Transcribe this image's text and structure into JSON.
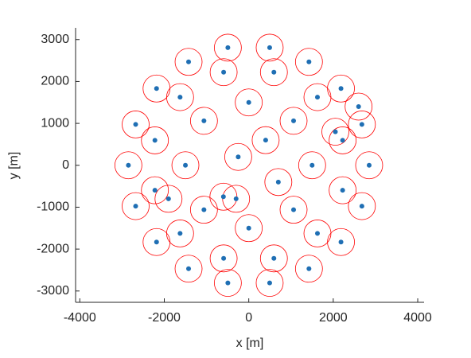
{
  "chart_data": {
    "type": "scatter",
    "xlabel": "x [m]",
    "ylabel": "y [m]",
    "xlim": [
      -4100,
      4150
    ],
    "ylim": [
      -3270,
      3280
    ],
    "xticks": [
      -4000,
      -2000,
      0,
      2000,
      4000
    ],
    "yticks": [
      -3000,
      -2000,
      -1000,
      0,
      1000,
      2000,
      3000
    ],
    "grid": false,
    "circle_radius": 320,
    "circle_color": "#ff0000",
    "series": [
      {
        "color": "#1f6fb4",
        "x": [
          2850,
          2678,
          2183,
          1425,
          495,
          -495,
          -1425,
          -2183,
          -2678,
          -2850,
          -2678,
          -2183,
          -1425,
          -495,
          495,
          1425,
          2183,
          2678,
          2222,
          1626,
          595,
          -595,
          -1626,
          -2222,
          -2222,
          -1626,
          -595,
          595,
          1626,
          2222,
          1500,
          1061,
          0,
          -1061,
          -1500,
          -1061,
          0,
          1061,
          -1900,
          2050,
          400,
          -250,
          700,
          -600,
          2600,
          -300
        ],
        "y": [
          0,
          975,
          1832,
          2468,
          2807,
          2807,
          2468,
          1832,
          975,
          0,
          -975,
          -1832,
          -2468,
          -2807,
          -2807,
          -2468,
          -1832,
          -975,
          595,
          1626,
          2222,
          2222,
          1626,
          595,
          -595,
          -1626,
          -2222,
          -2222,
          -1626,
          -595,
          0,
          1061,
          1500,
          1061,
          0,
          -1061,
          -1500,
          -1061,
          -800,
          800,
          600,
          200,
          -400,
          -750,
          1400,
          -800
        ]
      }
    ]
  }
}
